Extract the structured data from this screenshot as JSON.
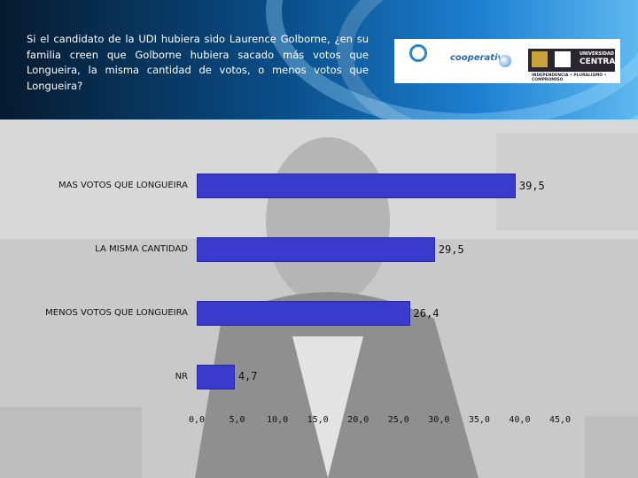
{
  "question": "Si el candidato de la UDI hubiera sido Laurence Golborne, ¿en su familia creen que Golborne hubiera sacado más votos que Longueira, la misma cantidad de votos, o menos votos que Longueira?",
  "logos": {
    "cooperativa": "cooperativa",
    "universidad_small": "UNIVERSIDAD",
    "universidad_big": "CENTRAL",
    "motto": "INDEPENDENCIA • PLURALISMO • COMPROMISO"
  },
  "chart_data": {
    "type": "bar",
    "orientation": "horizontal",
    "categories": [
      "MAS VOTOS QUE LONGUEIRA",
      "LA MISMA CANTIDAD",
      "MENOS VOTOS QUE LONGUEIRA",
      "NR"
    ],
    "values": [
      39.5,
      29.5,
      26.4,
      4.7
    ],
    "value_labels": [
      "39,5",
      "29,5",
      "26,4",
      "4,7"
    ],
    "xlim": [
      0,
      45
    ],
    "x_ticks": [
      "0,0",
      "5,0",
      "10,0",
      "15,0",
      "20,0",
      "25,0",
      "30,0",
      "35,0",
      "40,0",
      "45,0"
    ],
    "bar_color": "#3a3acd",
    "grid": false,
    "legend": "none"
  },
  "colors": {
    "header_dark": "#061a2e",
    "header_light": "#5fb8ef",
    "background": "#d4d4d4"
  }
}
